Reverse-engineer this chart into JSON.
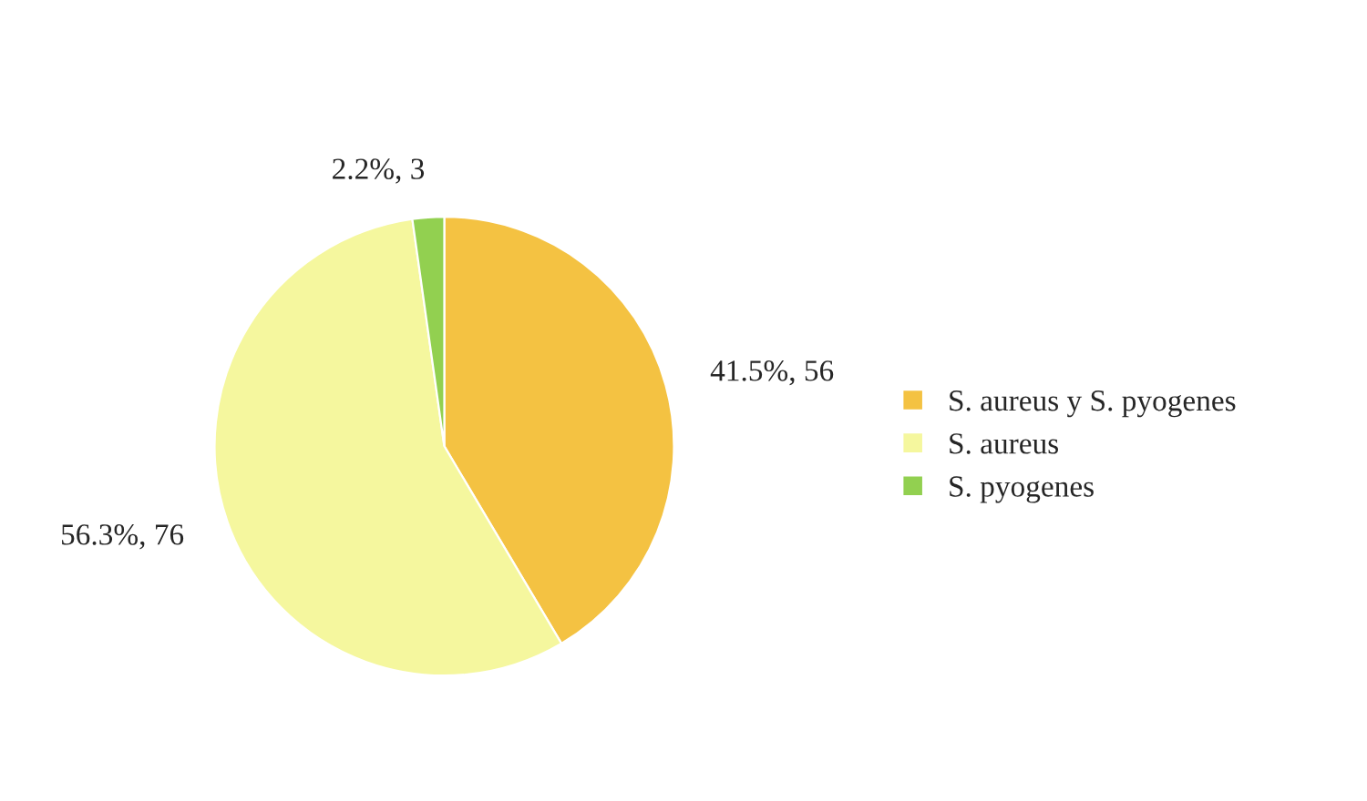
{
  "chart_data": {
    "type": "pie",
    "categories": [
      "S. aureus y S. pyogenes",
      "S. aureus",
      "S. pyogenes"
    ],
    "values": [
      56,
      76,
      3
    ],
    "colors": [
      "#f4c242",
      "#f5f79e",
      "#92d050"
    ],
    "value_labels": [
      "41.5%, 56",
      "56.3%, 76",
      "2.2%, 3"
    ],
    "legend": "right"
  }
}
